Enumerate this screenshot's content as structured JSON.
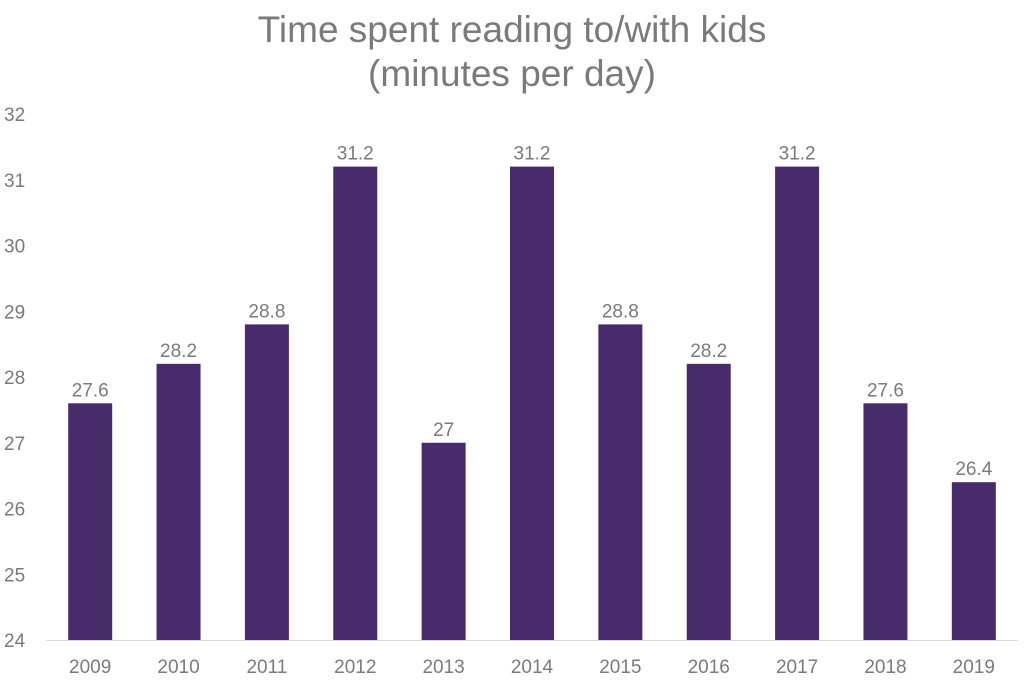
{
  "chart_data": {
    "type": "bar",
    "title": [
      "Time spent reading to/with kids",
      "(minutes per day)"
    ],
    "xlabel": "",
    "ylabel": "",
    "categories": [
      "2009",
      "2010",
      "2011",
      "2012",
      "2013",
      "2014",
      "2015",
      "2016",
      "2017",
      "2018",
      "2019"
    ],
    "values": [
      27.6,
      28.2,
      28.8,
      31.2,
      27,
      31.2,
      28.8,
      28.2,
      31.2,
      27.6,
      26.4
    ],
    "data_labels": [
      "27.6",
      "28.2",
      "28.8",
      "31.2",
      "27",
      "31.2",
      "28.8",
      "28.2",
      "31.2",
      "27.6",
      "26.4"
    ],
    "ylim": [
      24,
      32
    ],
    "yticks": [
      "24",
      "25",
      "26",
      "27",
      "28",
      "29",
      "30",
      "31",
      "32"
    ],
    "grid": false,
    "legend": "none",
    "colors": {
      "bar": "#482b6b",
      "text": "#7a7a7a",
      "axis": "#d9d9d9"
    }
  }
}
